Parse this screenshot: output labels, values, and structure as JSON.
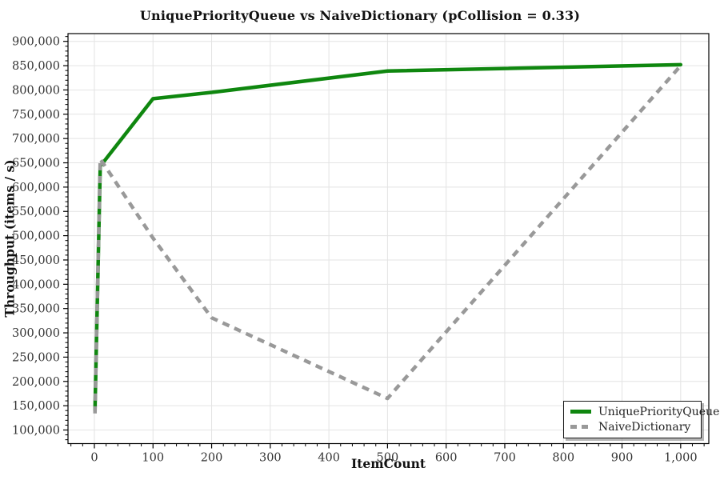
{
  "chart_data": {
    "type": "line",
    "title": "UniquePriorityQueue vs NaiveDictionary (pCollision = 0.33)",
    "xlabel": "ItemCount",
    "ylabel": "Throughput (items / s)",
    "grid": true,
    "grid_color": "#e3e3e3",
    "background_color": "#ffffff",
    "legend_position": "bottom-right",
    "x_axis": {
      "min": -45,
      "max": 1048,
      "major_step": 100,
      "minor_step": 20,
      "major_ticks": [
        0,
        100,
        200,
        300,
        400,
        500,
        600,
        700,
        800,
        900,
        1000
      ],
      "tick_labels": [
        "0",
        "100",
        "200",
        "300",
        "400",
        "500",
        "600",
        "700",
        "800",
        "900",
        "1,000"
      ]
    },
    "y_axis": {
      "min": 72000,
      "max": 916000,
      "major_step": 50000,
      "minor_step": 10000,
      "major_ticks": [
        100000,
        150000,
        200000,
        250000,
        300000,
        350000,
        400000,
        450000,
        500000,
        550000,
        600000,
        650000,
        700000,
        750000,
        800000,
        850000,
        900000
      ],
      "tick_labels": [
        "100,000",
        "150,000",
        "200,000",
        "250,000",
        "300,000",
        "350,000",
        "400,000",
        "450,000",
        "500,000",
        "550,000",
        "600,000",
        "650,000",
        "700,000",
        "750,000",
        "800,000",
        "850,000",
        "900,000"
      ]
    },
    "series": [
      {
        "name": "UniquePriorityQueue",
        "color": "#0f870f",
        "style": "solid",
        "x": [
          1,
          10,
          100,
          200,
          500,
          1000
        ],
        "y": [
          140000,
          643000,
          782000,
          795000,
          839000,
          852000
        ]
      },
      {
        "name": "NaiveDictionary",
        "color": "#999999",
        "style": "dashed",
        "x": [
          1,
          10,
          100,
          200,
          500,
          1000
        ],
        "y": [
          134000,
          658000,
          495000,
          331000,
          165000,
          850000
        ]
      }
    ]
  }
}
